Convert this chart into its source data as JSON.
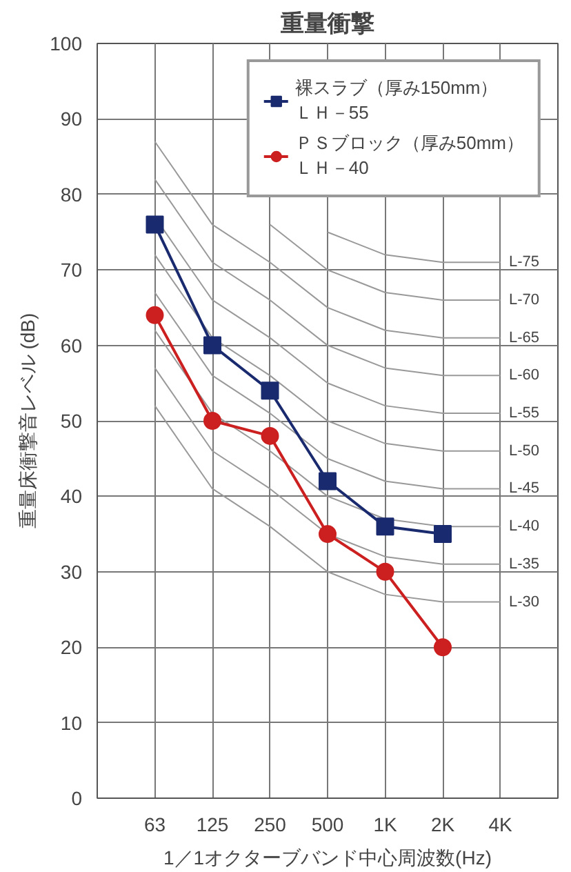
{
  "chart_data": {
    "type": "line",
    "title": "重量衝撃",
    "xlabel": "1／1オクターブバンド中心周波数(Hz)",
    "ylabel": "重量床衝撃音レベル (dB)",
    "categories": [
      "63",
      "125",
      "250",
      "500",
      "1K",
      "2K",
      "4K"
    ],
    "ylim": [
      0,
      100
    ],
    "yticks": [
      0,
      10,
      20,
      30,
      40,
      50,
      60,
      70,
      80,
      90,
      100
    ],
    "grid": true,
    "legend": "top right",
    "series": [
      {
        "name": "L-75",
        "color": "#999999",
        "marker": "none",
        "values": [
          null,
          null,
          null,
          75,
          72,
          71,
          71
        ]
      },
      {
        "name": "L-70",
        "color": "#999999",
        "marker": "none",
        "values": [
          null,
          null,
          76,
          70,
          67,
          66,
          66
        ]
      },
      {
        "name": "L-65",
        "color": "#999999",
        "marker": "none",
        "values": [
          87,
          76,
          71,
          65,
          62,
          61,
          61
        ]
      },
      {
        "name": "L-60",
        "color": "#999999",
        "marker": "none",
        "values": [
          82,
          71,
          66,
          60,
          57,
          56,
          56
        ]
      },
      {
        "name": "L-55",
        "color": "#999999",
        "marker": "none",
        "values": [
          77,
          66,
          61,
          55,
          52,
          51,
          51
        ]
      },
      {
        "name": "L-50",
        "color": "#999999",
        "marker": "none",
        "values": [
          72,
          61,
          56,
          50,
          47,
          46,
          46
        ]
      },
      {
        "name": "L-45",
        "color": "#999999",
        "marker": "none",
        "values": [
          67,
          56,
          51,
          45,
          42,
          41,
          41
        ]
      },
      {
        "name": "L-40",
        "color": "#999999",
        "marker": "none",
        "values": [
          62,
          51,
          46,
          40,
          37,
          36,
          36
        ]
      },
      {
        "name": "L-35",
        "color": "#999999",
        "marker": "none",
        "values": [
          57,
          46,
          41,
          35,
          32,
          31,
          31
        ]
      },
      {
        "name": "L-30",
        "color": "#999999",
        "marker": "none",
        "values": [
          52,
          41,
          36,
          30,
          27,
          26,
          26
        ]
      },
      {
        "name": "裸スラブ（厚み150mm）ＬＨ－55",
        "color": "#1a2a6e",
        "marker": "square",
        "values": [
          76,
          60,
          54,
          42,
          36,
          35,
          null
        ]
      },
      {
        "name": "ＰＳブロック（厚み50mm）ＬＨ－40",
        "color": "#cc1f1f",
        "marker": "circle",
        "values": [
          64,
          50,
          48,
          35,
          30,
          20,
          null
        ]
      }
    ]
  }
}
